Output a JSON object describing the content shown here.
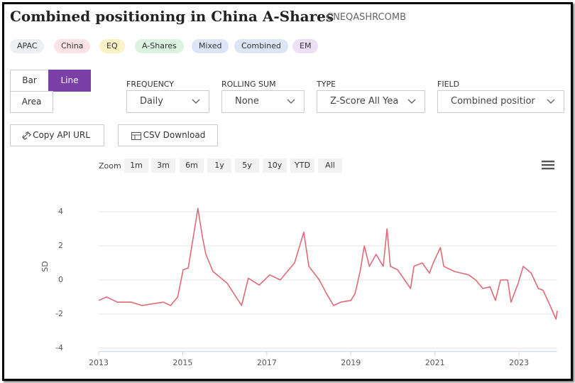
{
  "header": {
    "title": "Combined positioning in China A-Shares",
    "code": "CNEQASHRCOMB"
  },
  "tags": [
    "APAC",
    "China",
    "EQ",
    "A-Shares",
    "Mixed",
    "Combined",
    "EM"
  ],
  "chart_types": [
    "Bar",
    "Line",
    "Area"
  ],
  "controls": [
    {
      "label": "FREQUENCY",
      "value": "Daily"
    },
    {
      "label": "ROLLING SUM",
      "value": "None"
    },
    {
      "label": "TYPE",
      "value": "Z-Score All Yea"
    },
    {
      "label": "FIELD",
      "value": "Combined positior"
    }
  ],
  "actions": [
    "Copy API URL",
    "CSV Download"
  ],
  "zoom": {
    "label": "Zoom",
    "options": [
      "1m",
      "3m",
      "6m",
      "1y",
      "5y",
      "10y",
      "YTD",
      "All"
    ]
  },
  "chart_data": {
    "type": "line",
    "y_label": "SD",
    "color": "#e06a78",
    "x": [
      2013.0,
      2013.19,
      2013.44,
      2013.78,
      2014.03,
      2014.28,
      2014.54,
      2014.71,
      2014.88,
      2015.01,
      2015.13,
      2015.25,
      2015.36,
      2015.47,
      2015.55,
      2015.72,
      2016.06,
      2016.4,
      2016.56,
      2016.82,
      2017.07,
      2017.32,
      2017.49,
      2017.66,
      2017.88,
      2018.0,
      2018.25,
      2018.42,
      2018.59,
      2018.76,
      2019.0,
      2019.1,
      2019.22,
      2019.32,
      2019.44,
      2019.6,
      2019.77,
      2019.86,
      2019.94,
      2020.11,
      2020.28,
      2020.42,
      2020.5,
      2020.7,
      2020.87,
      2020.96,
      2021.13,
      2021.21,
      2021.46,
      2021.63,
      2021.8,
      2021.97,
      2022.14,
      2022.31,
      2022.44,
      2022.56,
      2022.73,
      2022.81,
      2022.98,
      2023.1,
      2023.29,
      2023.46,
      2023.57,
      2023.74,
      2023.88,
      2023.91
    ],
    "values": [
      -1.2,
      -1.0,
      -1.3,
      -1.3,
      -1.5,
      -1.4,
      -1.3,
      -1.5,
      -1.0,
      0.6,
      0.7,
      2.5,
      4.2,
      2.5,
      1.5,
      0.5,
      -0.2,
      -1.5,
      0.1,
      -0.3,
      0.3,
      0.0,
      0.5,
      1.0,
      2.8,
      0.8,
      0.0,
      -0.8,
      -1.5,
      -1.3,
      -1.2,
      -0.8,
      0.5,
      2.0,
      0.8,
      1.5,
      0.8,
      3.0,
      0.8,
      0.6,
      0.0,
      -0.5,
      0.8,
      1.0,
      0.4,
      1.0,
      1.9,
      0.8,
      0.5,
      0.4,
      0.3,
      0.0,
      -0.5,
      -0.4,
      -1.2,
      0.0,
      0.0,
      -1.3,
      -0.2,
      0.8,
      0.4,
      -0.5,
      -0.6,
      -1.5,
      -2.3,
      -1.8
    ],
    "xlim": [
      2013.0,
      2023.91
    ],
    "ylim": [
      -4.2,
      4.6
    ],
    "xticks": [
      2013,
      2015,
      2017,
      2019,
      2021,
      2023
    ],
    "yticks": [
      -4,
      -2,
      0,
      2,
      4
    ],
    "grid": true
  }
}
